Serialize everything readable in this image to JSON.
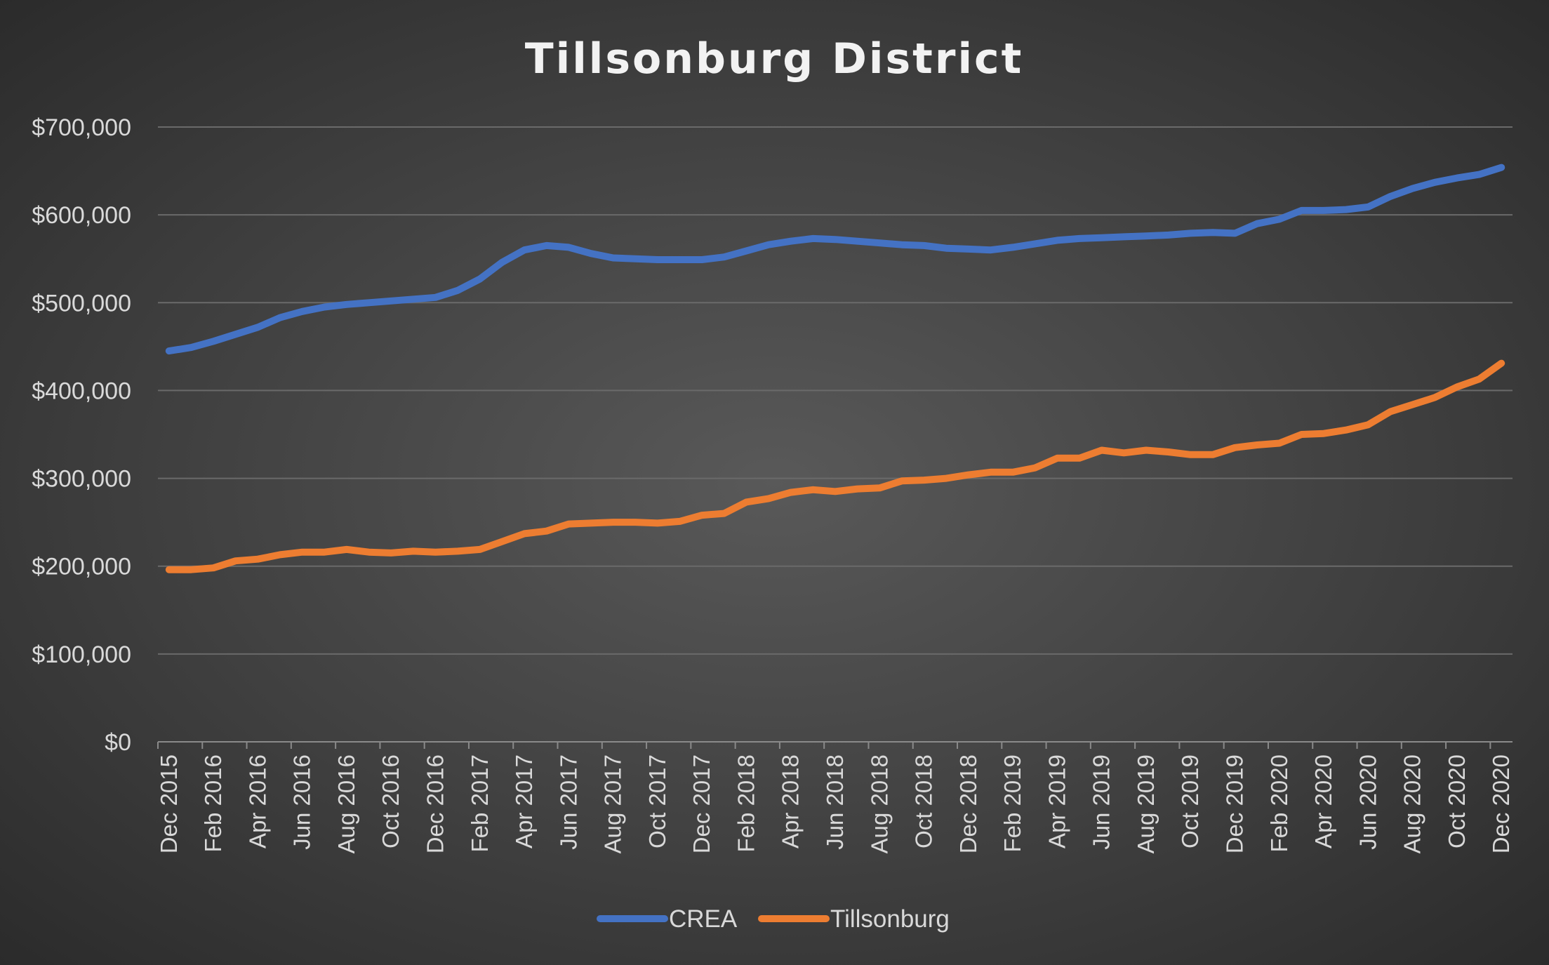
{
  "chart_data": {
    "type": "line",
    "title": "Tillsonburg District",
    "xlabel": "",
    "ylabel": "",
    "ylim": [
      0,
      700000
    ],
    "yticks": [
      0,
      100000,
      200000,
      300000,
      400000,
      500000,
      600000,
      700000
    ],
    "ytick_labels": [
      "$0",
      "$100,000",
      "$200,000",
      "$300,000",
      "$400,000",
      "$500,000",
      "$600,000",
      "$700,000"
    ],
    "x": [
      "Dec 2015",
      "Jan 2016",
      "Feb 2016",
      "Mar 2016",
      "Apr 2016",
      "May 2016",
      "Jun 2016",
      "Jul 2016",
      "Aug 2016",
      "Sep 2016",
      "Oct 2016",
      "Nov 2016",
      "Dec 2016",
      "Jan 2017",
      "Feb 2017",
      "Mar 2017",
      "Apr 2017",
      "May 2017",
      "Jun 2017",
      "Jul 2017",
      "Aug 2017",
      "Sep 2017",
      "Oct 2017",
      "Nov 2017",
      "Dec 2017",
      "Jan 2018",
      "Feb 2018",
      "Mar 2018",
      "Apr 2018",
      "May 2018",
      "Jun 2018",
      "Jul 2018",
      "Aug 2018",
      "Sep 2018",
      "Oct 2018",
      "Nov 2018",
      "Dec 2018",
      "Jan 2019",
      "Feb 2019",
      "Mar 2019",
      "Apr 2019",
      "May 2019",
      "Jun 2019",
      "Jul 2019",
      "Aug 2019",
      "Sep 2019",
      "Oct 2019",
      "Nov 2019",
      "Dec 2019",
      "Jan 2020",
      "Feb 2020",
      "Mar 2020",
      "Apr 2020",
      "May 2020",
      "Jun 2020",
      "Jul 2020",
      "Aug 2020",
      "Sep 2020",
      "Oct 2020",
      "Nov 2020",
      "Dec 2020"
    ],
    "x_tick_labels": [
      "Dec 2015",
      "Feb 2016",
      "Apr 2016",
      "Jun 2016",
      "Aug 2016",
      "Oct 2016",
      "Dec 2016",
      "Feb 2017",
      "Apr 2017",
      "Jun 2017",
      "Aug 2017",
      "Oct 2017",
      "Dec 2017",
      "Feb 2018",
      "Apr 2018",
      "Jun 2018",
      "Aug 2018",
      "Oct 2018",
      "Dec 2018",
      "Feb 2019",
      "Apr 2019",
      "Jun 2019",
      "Aug 2019",
      "Oct 2019",
      "Dec 2019",
      "Feb 2020",
      "Apr 2020",
      "Jun 2020",
      "Aug 2020",
      "Oct 2020",
      "Dec 2020"
    ],
    "series": [
      {
        "name": "CREA",
        "color": "#4472c4",
        "values": [
          445000,
          449000,
          456000,
          464000,
          472000,
          483000,
          490000,
          495000,
          498000,
          500000,
          502000,
          504000,
          506000,
          514000,
          527000,
          546000,
          560000,
          565000,
          563000,
          556000,
          551000,
          550000,
          549000,
          549000,
          549000,
          552000,
          559000,
          566000,
          570000,
          573000,
          572000,
          570000,
          568000,
          566000,
          565000,
          562000,
          561000,
          560000,
          563000,
          567000,
          571000,
          573000,
          574000,
          575000,
          576000,
          577000,
          579000,
          580000,
          579000,
          590000,
          595000,
          605000,
          605000,
          606000,
          609000,
          621000,
          630000,
          637000,
          642000,
          646000,
          654000
        ]
      },
      {
        "name": "Tillsonburg",
        "color": "#ed7d31",
        "values": [
          196000,
          196000,
          198000,
          206000,
          208000,
          213000,
          216000,
          216000,
          219000,
          216000,
          215000,
          217000,
          216000,
          217000,
          219000,
          228000,
          237000,
          240000,
          248000,
          249000,
          250000,
          250000,
          249000,
          251000,
          258000,
          260000,
          273000,
          277000,
          284000,
          287000,
          285000,
          288000,
          289000,
          297000,
          298000,
          300000,
          304000,
          307000,
          307000,
          312000,
          323000,
          323000,
          332000,
          329000,
          332000,
          330000,
          327000,
          327000,
          335000,
          338000,
          340000,
          350000,
          351000,
          355000,
          361000,
          376000,
          384000,
          392000,
          404000,
          413000,
          431000
        ]
      }
    ],
    "legend": "bottom",
    "grid": true
  }
}
